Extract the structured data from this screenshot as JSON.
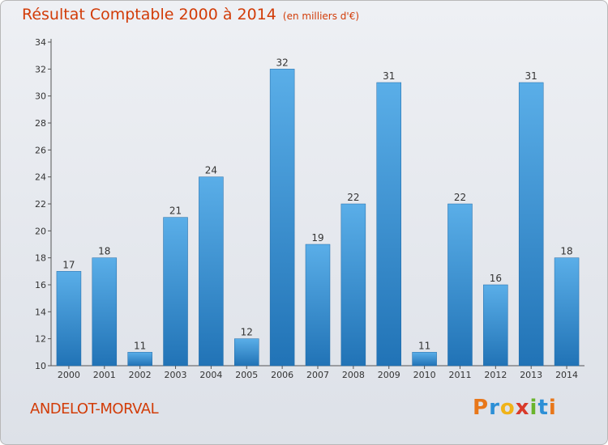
{
  "title": "Résultat Comptable 2000 à 2014",
  "unit": "(en milliers d'€)",
  "commune": "ANDELOT-MORVAL",
  "brand": {
    "letters": [
      "P",
      "r",
      "o",
      "x",
      "i",
      "t",
      "i"
    ],
    "colors": [
      "#e8771a",
      "#2c8fd6",
      "#f0b318",
      "#d93a2b",
      "#6ab42d",
      "#2c8fd6",
      "#e8771a"
    ]
  },
  "chart_data": {
    "type": "bar",
    "title": "Résultat Comptable 2000 à 2014",
    "subtitle": "(en milliers d'€)",
    "categories": [
      "2000",
      "2001",
      "2002",
      "2003",
      "2004",
      "2005",
      "2006",
      "2007",
      "2008",
      "2009",
      "2010",
      "2011",
      "2012",
      "2013",
      "2014"
    ],
    "values": [
      17,
      18,
      11,
      21,
      24,
      12,
      32,
      19,
      22,
      31,
      11,
      22,
      16,
      31,
      18
    ],
    "ylim": [
      10,
      34
    ],
    "yticks": [
      10,
      12,
      14,
      16,
      18,
      20,
      22,
      24,
      26,
      28,
      30,
      32,
      34
    ],
    "grid": false,
    "colors": {
      "bar_top": "#5aaee8",
      "bar_bottom": "#2173b6",
      "axis": "#555555"
    }
  }
}
